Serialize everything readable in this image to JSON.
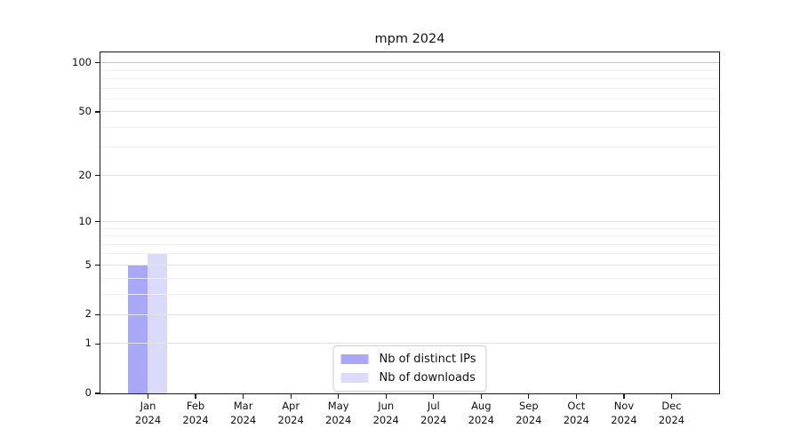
{
  "figure": {
    "title": "mpm 2024"
  },
  "chart_data": {
    "type": "bar",
    "title": "mpm 2024",
    "categories": [
      "Jan 2024",
      "Feb 2024",
      "Mar 2024",
      "Apr 2024",
      "May 2024",
      "Jun 2024",
      "Jul 2024",
      "Aug 2024",
      "Sep 2024",
      "Oct 2024",
      "Nov 2024",
      "Dec 2024"
    ],
    "series": [
      {
        "name": "Nb of distinct IPs",
        "color": "#a8a8f7",
        "values": [
          5,
          0,
          0,
          0,
          0,
          0,
          0,
          0,
          0,
          0,
          0,
          0
        ]
      },
      {
        "name": "Nb of downloads",
        "color": "#dbdbf9",
        "values": [
          6,
          0,
          0,
          0,
          0,
          0,
          0,
          0,
          0,
          0,
          0,
          0
        ]
      }
    ],
    "xlabel": "",
    "ylabel": "",
    "yscale": "log1p",
    "ylim": [
      0,
      116
    ],
    "y_major_ticks": [
      0,
      1,
      2,
      5,
      10,
      20,
      50,
      100
    ],
    "y_minor_gridlines": [
      3,
      4,
      6,
      7,
      8,
      9,
      30,
      40,
      60,
      70,
      80,
      90
    ],
    "grid": "on",
    "legend_position": "lower center"
  },
  "colors": {
    "background": "#ffffff",
    "spine": "#1a1a1a",
    "text": "#111111",
    "grid_major": "#e2e2e2",
    "grid_minor": "#f1f1f1",
    "grid_top": "#c2c2c2",
    "legend_border": "#cccccc"
  }
}
